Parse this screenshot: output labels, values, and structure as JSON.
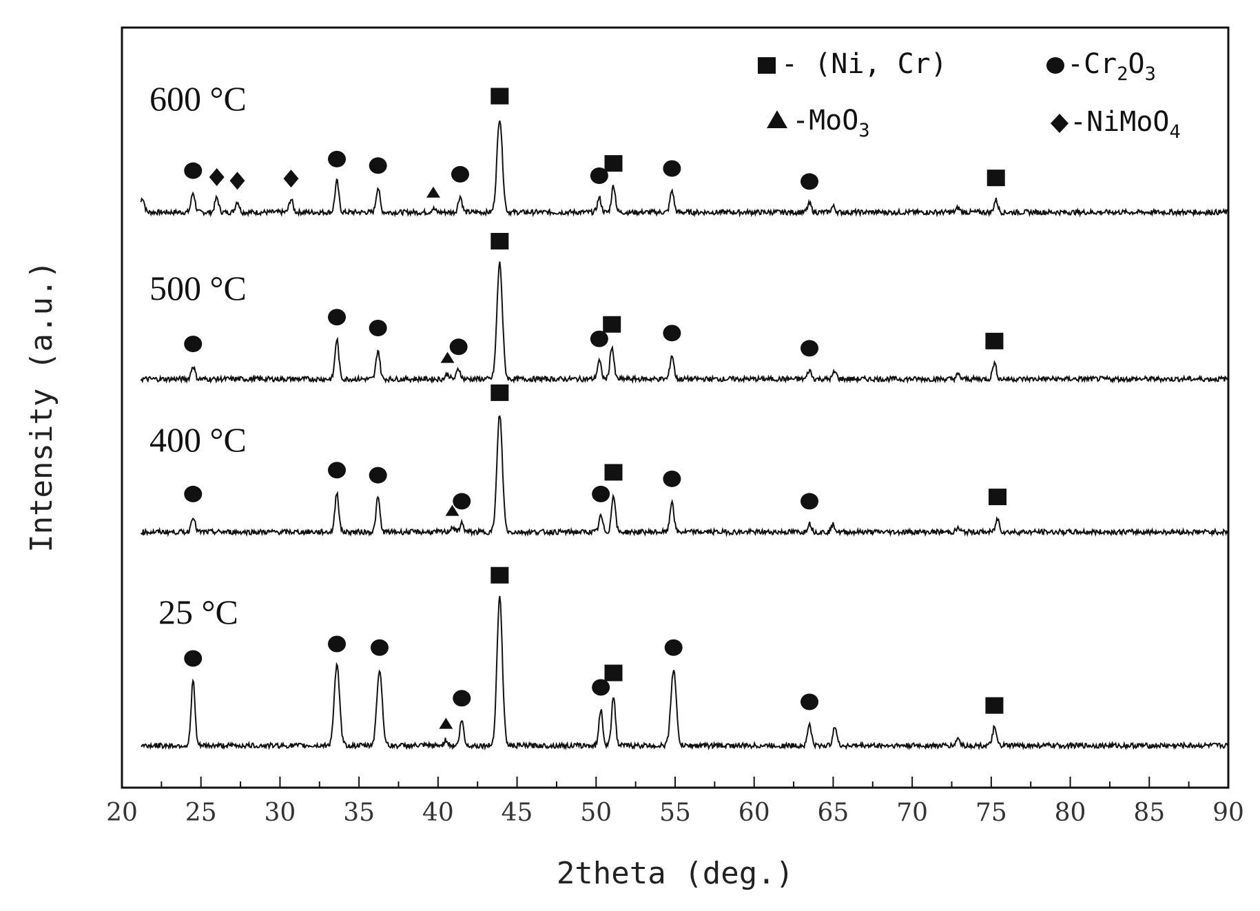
{
  "chart_data": {
    "type": "line",
    "xlabel": "2theta (deg.)",
    "ylabel": "Intensity (a.u.)",
    "xlim": [
      20,
      90
    ],
    "x_ticks": [
      20,
      25,
      30,
      35,
      40,
      45,
      50,
      55,
      60,
      65,
      70,
      75,
      80,
      85,
      90
    ],
    "grid": false,
    "legend_position": "top-right",
    "legend": [
      {
        "marker": "square",
        "label": "- (Ni, Cr)"
      },
      {
        "marker": "circle",
        "label": "-Cr",
        "sub1": "2",
        "mid": "O",
        "sub2": "3"
      },
      {
        "marker": "triangle",
        "label": "-MoO",
        "sub1": "3"
      },
      {
        "marker": "diamond",
        "label": "-NiMoO",
        "sub1": "4"
      }
    ],
    "series": [
      {
        "name": "600 °C",
        "peaks": [
          {
            "x": 21.3,
            "h": 0.2,
            "phase": ""
          },
          {
            "x": 24.5,
            "h": 0.27,
            "phase": "circle"
          },
          {
            "x": 26.0,
            "h": 0.2,
            "phase": "diamond"
          },
          {
            "x": 27.3,
            "h": 0.15,
            "phase": "diamond"
          },
          {
            "x": 30.7,
            "h": 0.18,
            "phase": "diamond"
          },
          {
            "x": 33.6,
            "h": 0.43,
            "phase": "circle"
          },
          {
            "x": 36.2,
            "h": 0.34,
            "phase": "circle"
          },
          {
            "x": 39.7,
            "h": 0.05,
            "phase": "triangle"
          },
          {
            "x": 41.4,
            "h": 0.22,
            "phase": "circle"
          },
          {
            "x": 43.9,
            "h": 1.3,
            "phase": "square"
          },
          {
            "x": 50.2,
            "h": 0.2,
            "phase": "circle"
          },
          {
            "x": 51.1,
            "h": 0.37,
            "phase": "square"
          },
          {
            "x": 54.8,
            "h": 0.3,
            "phase": "circle"
          },
          {
            "x": 63.5,
            "h": 0.12,
            "phase": "circle"
          },
          {
            "x": 65.0,
            "h": 0.08,
            "phase": ""
          },
          {
            "x": 72.9,
            "h": 0.06,
            "phase": ""
          },
          {
            "x": 75.3,
            "h": 0.17,
            "phase": "square"
          }
        ]
      },
      {
        "name": "500 °C",
        "peaks": [
          {
            "x": 24.5,
            "h": 0.18,
            "phase": "circle"
          },
          {
            "x": 33.6,
            "h": 0.55,
            "phase": "circle"
          },
          {
            "x": 36.2,
            "h": 0.4,
            "phase": "circle"
          },
          {
            "x": 40.6,
            "h": 0.07,
            "phase": "triangle"
          },
          {
            "x": 41.3,
            "h": 0.14,
            "phase": "circle"
          },
          {
            "x": 43.9,
            "h": 1.6,
            "phase": "square"
          },
          {
            "x": 50.2,
            "h": 0.25,
            "phase": "circle"
          },
          {
            "x": 51.0,
            "h": 0.45,
            "phase": "square"
          },
          {
            "x": 54.8,
            "h": 0.33,
            "phase": "circle"
          },
          {
            "x": 63.5,
            "h": 0.12,
            "phase": "circle"
          },
          {
            "x": 65.1,
            "h": 0.1,
            "phase": ""
          },
          {
            "x": 72.9,
            "h": 0.06,
            "phase": ""
          },
          {
            "x": 75.2,
            "h": 0.22,
            "phase": "square"
          }
        ]
      },
      {
        "name": "400 °C",
        "peaks": [
          {
            "x": 24.5,
            "h": 0.22,
            "phase": "circle"
          },
          {
            "x": 33.6,
            "h": 0.55,
            "phase": "circle"
          },
          {
            "x": 36.2,
            "h": 0.48,
            "phase": "circle"
          },
          {
            "x": 40.9,
            "h": 0.07,
            "phase": "triangle"
          },
          {
            "x": 41.5,
            "h": 0.12,
            "phase": "circle"
          },
          {
            "x": 43.9,
            "h": 1.62,
            "phase": "square"
          },
          {
            "x": 50.3,
            "h": 0.22,
            "phase": "circle"
          },
          {
            "x": 51.1,
            "h": 0.52,
            "phase": "square"
          },
          {
            "x": 54.8,
            "h": 0.43,
            "phase": "circle"
          },
          {
            "x": 63.5,
            "h": 0.12,
            "phase": "circle"
          },
          {
            "x": 65.0,
            "h": 0.1,
            "phase": ""
          },
          {
            "x": 72.9,
            "h": 0.05,
            "phase": ""
          },
          {
            "x": 75.4,
            "h": 0.18,
            "phase": "square"
          }
        ]
      },
      {
        "name": "25 °C",
        "peaks": [
          {
            "x": 24.5,
            "h": 0.9,
            "phase": "circle"
          },
          {
            "x": 33.6,
            "h": 1.1,
            "phase": "circle"
          },
          {
            "x": 36.3,
            "h": 1.05,
            "phase": "circle"
          },
          {
            "x": 40.5,
            "h": 0.08,
            "phase": "triangle"
          },
          {
            "x": 41.5,
            "h": 0.35,
            "phase": "circle"
          },
          {
            "x": 43.9,
            "h": 2.05,
            "phase": "square"
          },
          {
            "x": 50.3,
            "h": 0.5,
            "phase": "circle"
          },
          {
            "x": 51.1,
            "h": 0.7,
            "phase": "square"
          },
          {
            "x": 54.9,
            "h": 1.05,
            "phase": "circle"
          },
          {
            "x": 63.5,
            "h": 0.3,
            "phase": "circle"
          },
          {
            "x": 65.1,
            "h": 0.28,
            "phase": ""
          },
          {
            "x": 72.9,
            "h": 0.1,
            "phase": ""
          },
          {
            "x": 75.2,
            "h": 0.25,
            "phase": "square"
          }
        ]
      }
    ]
  }
}
